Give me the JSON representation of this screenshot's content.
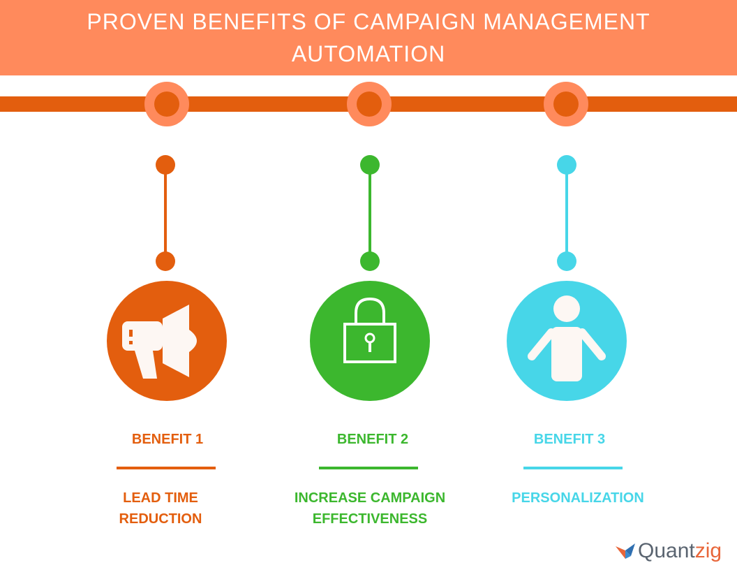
{
  "header": {
    "title_line1": "PROVEN BENEFITS OF CAMPAIGN MANAGEMENT",
    "title_line2": "AUTOMATION"
  },
  "colors": {
    "banner": "#ff8a5c",
    "rail": "#e35e0e",
    "benefit1": "#e35e0e",
    "benefit2": "#3cb72e",
    "benefit3": "#47d6e8"
  },
  "benefits": [
    {
      "label": "BENEFIT 1",
      "desc_line1": "LEAD TIME",
      "desc_line2": "REDUCTION",
      "icon": "megaphone-icon"
    },
    {
      "label": "BENEFIT 2",
      "desc_line1": "INCREASE CAMPAIGN",
      "desc_line2": "EFFECTIVENESS",
      "icon": "padlock-icon"
    },
    {
      "label": "BENEFIT 3",
      "desc_line1": "PERSONALIZATION",
      "desc_line2": "",
      "icon": "person-icon"
    }
  ],
  "logo": {
    "text_main": "Quant",
    "text_accent": "zig"
  }
}
